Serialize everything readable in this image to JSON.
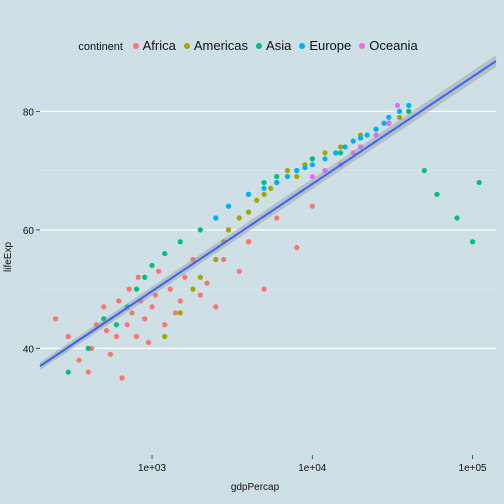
{
  "chart_data": {
    "type": "scatter",
    "title": "",
    "xlabel": "gdpPercap",
    "ylabel": "lifeExp",
    "x_scale": "log10",
    "xlim": [
      200,
      140000
    ],
    "ylim": [
      22,
      88
    ],
    "x_ticks": [
      1000,
      10000,
      100000
    ],
    "x_tick_labels": [
      "1e+03",
      "1e+04",
      "1e+05"
    ],
    "y_ticks": [
      40,
      60,
      80
    ],
    "y_tick_labels": [
      "40",
      "60",
      "80"
    ],
    "grid": true,
    "legend": {
      "title": "continent",
      "position": "top",
      "entries": [
        {
          "name": "Africa",
          "color": "#F8766D"
        },
        {
          "name": "Americas",
          "color": "#A3A500"
        },
        {
          "name": "Asia",
          "color": "#00BF7D"
        },
        {
          "name": "Europe",
          "color": "#00B0F6"
        },
        {
          "name": "Oceania",
          "color": "#E76BF3"
        }
      ]
    },
    "series": [
      {
        "name": "Africa",
        "color": "#F8766D",
        "x": [
          250,
          300,
          350,
          400,
          420,
          450,
          500,
          520,
          550,
          600,
          620,
          650,
          700,
          720,
          750,
          800,
          820,
          850,
          900,
          950,
          1000,
          1050,
          1100,
          1200,
          1300,
          1400,
          1500,
          1600,
          1800,
          2000,
          2200,
          2500,
          2800,
          3000,
          3500,
          4000,
          5000,
          6000,
          8000,
          10000,
          12000
        ],
        "y": [
          45,
          42,
          38,
          36,
          40,
          44,
          47,
          43,
          39,
          42,
          48,
          35,
          44,
          50,
          46,
          42,
          52,
          48,
          45,
          41,
          47,
          49,
          53,
          44,
          50,
          46,
          48,
          52,
          55,
          49,
          51,
          47,
          55,
          60,
          53,
          58,
          50,
          62,
          57,
          64,
          70
        ]
      },
      {
        "name": "Americas",
        "color": "#A3A500",
        "x": [
          1200,
          1500,
          1800,
          2000,
          2500,
          2800,
          3000,
          3500,
          4000,
          4500,
          5000,
          5500,
          6000,
          7000,
          8000,
          9000,
          10000,
          12000,
          15000,
          20000,
          25000,
          30000,
          35000,
          40000
        ],
        "y": [
          42,
          46,
          50,
          52,
          55,
          58,
          60,
          62,
          63,
          65,
          66,
          67,
          68,
          70,
          69,
          71,
          72,
          73,
          74,
          76,
          77,
          78,
          79,
          80
        ]
      },
      {
        "name": "Asia",
        "color": "#00BF7D",
        "x": [
          300,
          400,
          500,
          600,
          700,
          800,
          900,
          1000,
          1200,
          1500,
          2000,
          2500,
          3000,
          4000,
          5000,
          6000,
          8000,
          10000,
          15000,
          20000,
          25000,
          30000,
          40000,
          50000,
          60000,
          80000,
          100000,
          110000
        ],
        "y": [
          36,
          40,
          45,
          44,
          47,
          50,
          52,
          54,
          56,
          58,
          60,
          62,
          64,
          66,
          68,
          69,
          70,
          72,
          73,
          74,
          76,
          78,
          80,
          70,
          66,
          62,
          58,
          68
        ]
      },
      {
        "name": "Europe",
        "color": "#00B0F6",
        "x": [
          2500,
          3000,
          4000,
          5000,
          6000,
          7000,
          8000,
          9000,
          10000,
          12000,
          14000,
          16000,
          18000,
          20000,
          22000,
          25000,
          28000,
          30000,
          35000,
          40000
        ],
        "y": [
          62,
          64,
          66,
          67,
          68,
          69,
          70,
          70.5,
          71,
          72,
          73,
          74,
          75,
          75.5,
          76,
          77,
          78,
          79,
          80,
          81
        ]
      },
      {
        "name": "Oceania",
        "color": "#E76BF3",
        "x": [
          10000,
          12000,
          15000,
          18000,
          20000,
          25000,
          30000,
          34000
        ],
        "y": [
          69,
          70,
          71,
          73,
          74,
          76,
          78,
          81
        ]
      }
    ],
    "trend_line": {
      "x": [
        200,
        140000
      ],
      "y": [
        37,
        88.5
      ],
      "color": "#3366FF"
    }
  }
}
